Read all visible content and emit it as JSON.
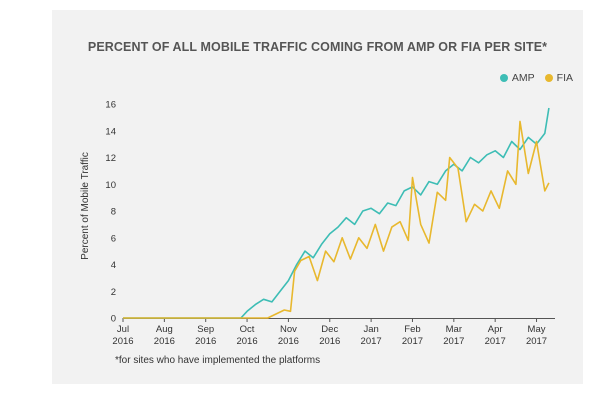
{
  "chart_data": {
    "type": "line",
    "title": "PERCENT OF ALL MOBILE TRAFFIC COMING FROM AMP OR FIA PER SITE*",
    "ylabel": "Percent of Mobile Traffic",
    "xlabel": "",
    "ylim": [
      0,
      16
    ],
    "yticks": [
      0,
      2,
      4,
      6,
      8,
      10,
      12,
      14,
      16
    ],
    "xlim": [
      0,
      10.35
    ],
    "x_tick_labels": [
      {
        "month": "Jul",
        "year": "2016"
      },
      {
        "month": "Aug",
        "year": "2016"
      },
      {
        "month": "Sep",
        "year": "2016"
      },
      {
        "month": "Oct",
        "year": "2016"
      },
      {
        "month": "Nov",
        "year": "2016"
      },
      {
        "month": "Dec",
        "year": "2016"
      },
      {
        "month": "Jan",
        "year": "2017"
      },
      {
        "month": "Feb",
        "year": "2017"
      },
      {
        "month": "Mar",
        "year": "2017"
      },
      {
        "month": "Apr",
        "year": "2017"
      },
      {
        "month": "May",
        "year": "2017"
      }
    ],
    "legend_position": "top-right",
    "series": [
      {
        "name": "AMP",
        "color": "#3dbdb5",
        "x": [
          0,
          2.85,
          3.0,
          3.2,
          3.4,
          3.6,
          3.8,
          4.0,
          4.2,
          4.4,
          4.6,
          4.8,
          5.0,
          5.2,
          5.4,
          5.6,
          5.8,
          6.0,
          6.2,
          6.4,
          6.6,
          6.8,
          7.0,
          7.2,
          7.4,
          7.6,
          7.8,
          8.0,
          8.2,
          8.4,
          8.6,
          8.8,
          9.0,
          9.2,
          9.4,
          9.6,
          9.8,
          10.0,
          10.2,
          10.3
        ],
        "y": [
          0,
          0,
          0.5,
          1.0,
          1.4,
          1.2,
          2.0,
          2.8,
          4.0,
          5.0,
          4.5,
          5.5,
          6.3,
          6.8,
          7.5,
          7.0,
          8.0,
          8.2,
          7.8,
          8.6,
          8.4,
          9.5,
          9.8,
          9.2,
          10.2,
          10.0,
          11.0,
          11.5,
          11.0,
          12.0,
          11.6,
          12.2,
          12.5,
          12.0,
          13.2,
          12.6,
          13.5,
          13.0,
          13.8,
          15.7
        ]
      },
      {
        "name": "FIA",
        "color": "#e8b82e",
        "x": [
          0,
          3.5,
          3.7,
          3.9,
          4.05,
          4.15,
          4.3,
          4.5,
          4.7,
          4.9,
          5.1,
          5.3,
          5.5,
          5.7,
          5.9,
          6.1,
          6.3,
          6.5,
          6.7,
          6.9,
          7.0,
          7.2,
          7.4,
          7.6,
          7.8,
          7.9,
          8.1,
          8.3,
          8.5,
          8.7,
          8.9,
          9.1,
          9.3,
          9.5,
          9.6,
          9.8,
          10.0,
          10.2,
          10.3
        ],
        "y": [
          0,
          0,
          0.3,
          0.6,
          0.5,
          3.5,
          4.3,
          4.6,
          2.8,
          5.0,
          4.2,
          6.0,
          4.4,
          6.0,
          5.2,
          7.0,
          5.0,
          6.8,
          7.2,
          5.8,
          10.5,
          7.0,
          5.6,
          9.4,
          8.8,
          12.0,
          11.2,
          7.2,
          8.5,
          8.0,
          9.5,
          8.2,
          11.0,
          10.0,
          14.7,
          10.8,
          13.2,
          9.5,
          10.1
        ]
      }
    ]
  },
  "footnote": "*for sites who have implemented the platforms"
}
